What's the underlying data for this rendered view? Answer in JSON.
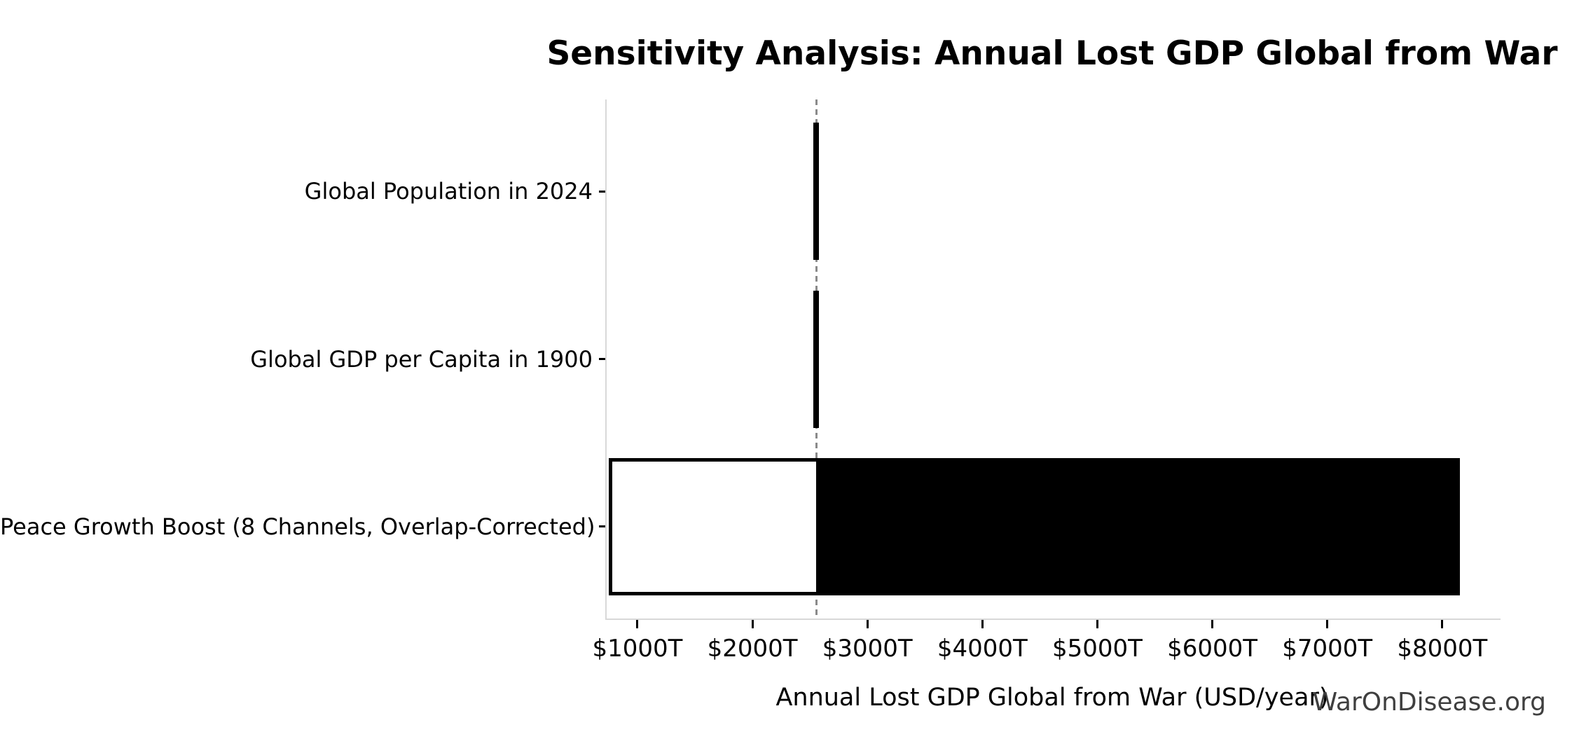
{
  "watermark": "WarOnDisease.org",
  "chart_data": {
    "type": "bar",
    "orientation": "horizontal",
    "title": "Sensitivity Analysis: Annual Lost GDP Global from War",
    "xlabel": "Annual Lost GDP Global from War (USD/year)",
    "ylabel": "",
    "grid": false,
    "legend": false,
    "baseline_T": 2554,
    "xlim_T": [
      732,
      8507
    ],
    "x_ticks": [
      {
        "value_T": 1000,
        "label": "$1000T"
      },
      {
        "value_T": 2000,
        "label": "$2000T"
      },
      {
        "value_T": 3000,
        "label": "$3000T"
      },
      {
        "value_T": 4000,
        "label": "$4000T"
      },
      {
        "value_T": 5000,
        "label": "$5000T"
      },
      {
        "value_T": 6000,
        "label": "$6000T"
      },
      {
        "value_T": 7000,
        "label": "$7000T"
      },
      {
        "value_T": 8000,
        "label": "$8000T"
      }
    ],
    "categories": [
      "Global Population in 2024",
      "Global GDP per Capita in 1900",
      "Peace Growth Boost (8 Channels, Overlap-Corrected)"
    ],
    "bars": [
      {
        "category": "Global Population in 2024",
        "low_T": 2532,
        "high_T": 2577
      },
      {
        "category": "Global GDP per Capita in 1900",
        "low_T": 2527,
        "high_T": 2580
      },
      {
        "category": "Peace Growth Boost (8 Channels, Overlap-Corrected)",
        "low_T": 748,
        "high_T": 8154
      }
    ],
    "colors": {
      "background": "#ffffff",
      "bar_above_baseline": "#000000",
      "bar_below_baseline": "#ffffff",
      "bar_edge": "#000000",
      "baseline_line": "#8a8a8a",
      "spine": "#d8d8d8",
      "tick": "#000000",
      "text": "#000000",
      "watermark": "#3f3f3f"
    }
  }
}
